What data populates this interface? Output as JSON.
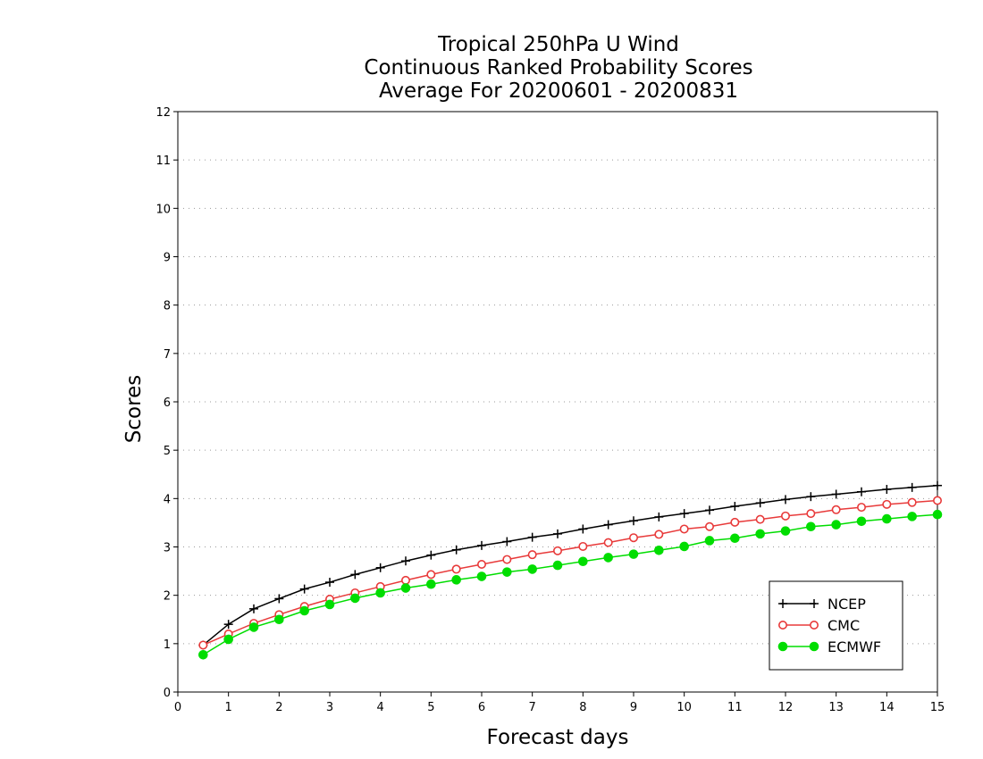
{
  "chart_data": {
    "type": "line",
    "title": [
      "Tropical 250hPa U Wind",
      "Continuous Ranked Probability Scores",
      "Average For 20200601 - 20200831"
    ],
    "xlabel": "Forecast days",
    "ylabel": "Scores",
    "xlim": [
      0,
      15
    ],
    "ylim": [
      0,
      12
    ],
    "xticks": [
      0,
      1,
      2,
      3,
      4,
      5,
      6,
      7,
      8,
      9,
      10,
      11,
      12,
      13,
      14,
      15
    ],
    "yticks": [
      0,
      1,
      2,
      3,
      4,
      5,
      6,
      7,
      8,
      9,
      10,
      11,
      12
    ],
    "grid": "horizontal dotted",
    "legend_position": "bottom-right",
    "x": [
      0.5,
      1,
      1.5,
      2,
      2.5,
      3,
      3.5,
      4,
      4.5,
      5,
      5.5,
      6,
      6.5,
      7,
      7.5,
      8,
      8.5,
      9,
      9.5,
      10,
      10.5,
      11,
      11.5,
      12,
      12.5,
      13,
      13.5,
      14,
      14.5,
      15
    ],
    "series": [
      {
        "name": "NCEP",
        "color": "#000000",
        "marker": "plus",
        "values": [
          0.97,
          1.4,
          1.72,
          1.93,
          2.13,
          2.27,
          2.43,
          2.57,
          2.71,
          2.83,
          2.94,
          3.03,
          3.11,
          3.2,
          3.27,
          3.37,
          3.46,
          3.54,
          3.62,
          3.69,
          3.76,
          3.84,
          3.91,
          3.98,
          4.04,
          4.09,
          4.14,
          4.19,
          4.23,
          4.27
        ]
      },
      {
        "name": "CMC",
        "color": "#e83a3a",
        "marker": "open-circle",
        "values": [
          0.97,
          1.2,
          1.42,
          1.6,
          1.77,
          1.92,
          2.05,
          2.18,
          2.31,
          2.43,
          2.54,
          2.64,
          2.74,
          2.84,
          2.92,
          3.01,
          3.09,
          3.19,
          3.26,
          3.37,
          3.42,
          3.51,
          3.57,
          3.64,
          3.69,
          3.77,
          3.82,
          3.88,
          3.92,
          3.96
        ]
      },
      {
        "name": "ECMWF",
        "color": "#00dd00",
        "marker": "filled-circle",
        "values": [
          0.77,
          1.09,
          1.34,
          1.5,
          1.68,
          1.81,
          1.94,
          2.05,
          2.15,
          2.23,
          2.32,
          2.39,
          2.48,
          2.54,
          2.62,
          2.7,
          2.78,
          2.85,
          2.93,
          3.01,
          3.13,
          3.18,
          3.27,
          3.33,
          3.42,
          3.46,
          3.53,
          3.58,
          3.63,
          3.67
        ]
      }
    ]
  }
}
